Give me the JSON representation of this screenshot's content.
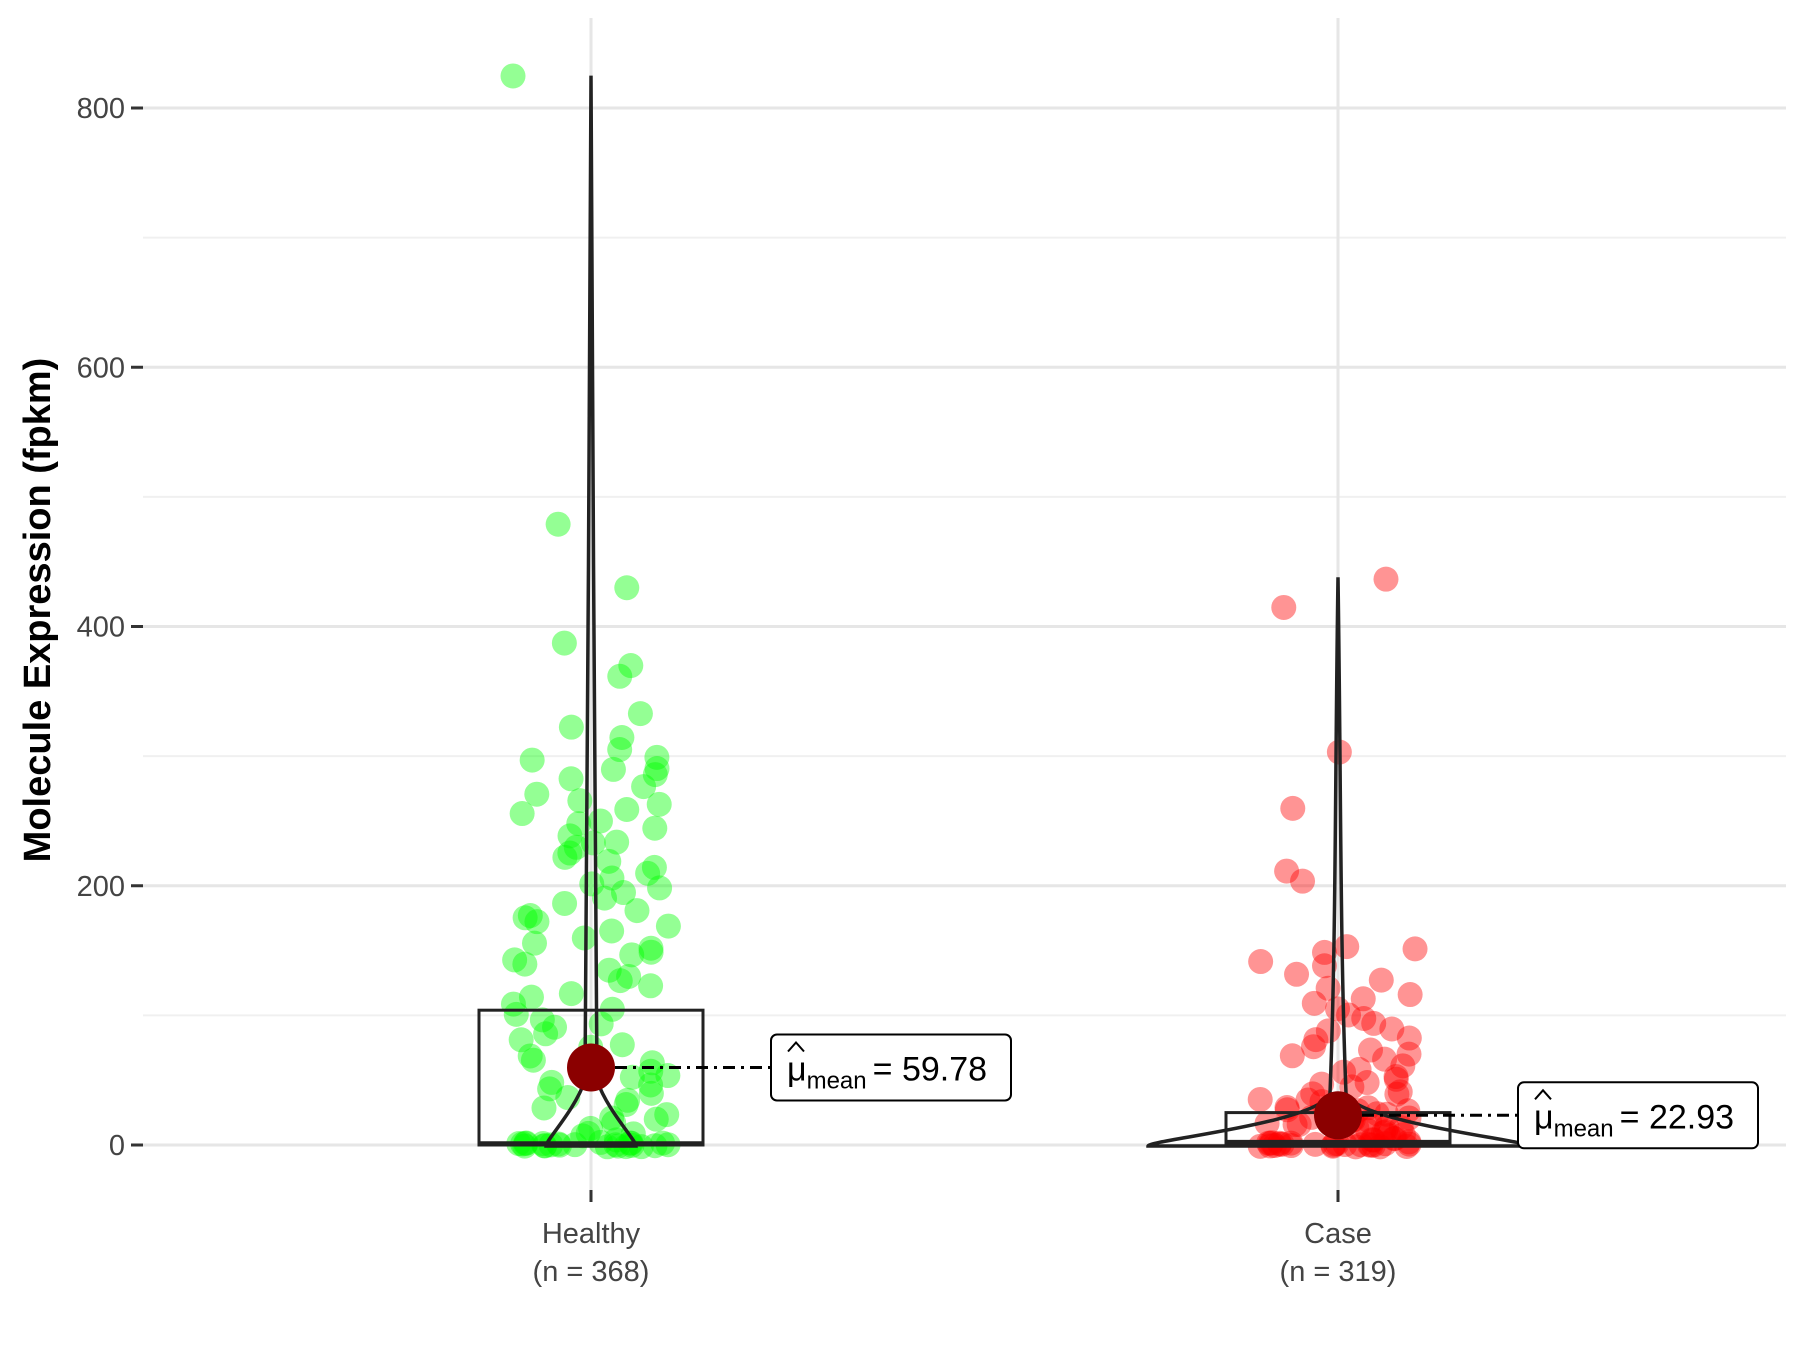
{
  "chart_data": {
    "type": "violin-box-scatter",
    "title": "",
    "ylabel": "Molecule Expression (fpkm)",
    "xlabel": "",
    "ylim": [
      -45,
      870
    ],
    "yticks": [
      0,
      200,
      400,
      600,
      800
    ],
    "grid": true,
    "legend": "none",
    "categories": [
      {
        "name": "Healthy",
        "n_label": "(n = 368)",
        "color": "#00ff00",
        "box": {
          "q1": 0,
          "median": 1,
          "q3": 104
        },
        "mean": 59.78,
        "mean_label_value": "= 59.78",
        "violin_max": 825,
        "points": [
          826,
          478,
          430,
          388,
          370,
          362,
          332,
          323,
          313,
          305,
          300,
          297,
          291,
          290,
          287,
          282,
          276,
          270,
          265,
          263,
          260,
          255,
          250,
          247,
          243,
          238,
          235,
          232,
          229,
          225,
          222,
          218,
          214,
          210,
          206,
          202,
          198,
          194,
          190,
          186,
          182,
          178,
          175,
          171,
          168,
          164,
          160,
          157,
          153,
          150,
          146,
          142,
          138,
          134,
          130,
          126,
          122,
          118,
          114,
          110,
          106,
          102,
          98,
          94,
          90,
          86,
          82,
          78,
          74,
          70,
          66,
          62,
          58,
          55,
          52,
          49,
          46,
          43,
          40,
          37,
          34,
          31,
          28,
          25,
          22,
          19,
          16,
          13,
          10,
          8,
          6,
          4,
          2,
          1,
          0,
          0,
          0,
          0,
          0,
          0,
          0,
          0,
          0,
          0,
          0,
          0,
          0,
          0,
          0,
          0,
          0,
          0,
          0,
          0,
          0,
          0
        ]
      },
      {
        "name": "Case",
        "n_label": "(n = 319)",
        "color": "#ff0000",
        "box": {
          "q1": 0,
          "median": 2,
          "q3": 25
        },
        "mean": 22.93,
        "mean_label_value": "= 22.93",
        "violin_max": 438,
        "points": [
          438,
          416,
          302,
          260,
          210,
          204,
          153,
          150,
          148,
          140,
          137,
          133,
          128,
          122,
          117,
          113,
          109,
          105,
          101,
          98,
          95,
          91,
          88,
          84,
          80,
          77,
          74,
          71,
          68,
          65,
          62,
          59,
          56,
          53,
          50,
          48,
          46,
          44,
          42,
          40,
          38,
          36,
          34,
          32,
          30,
          28,
          27,
          26,
          25,
          24,
          23,
          22,
          21,
          20,
          19,
          18,
          17,
          16,
          15,
          14,
          13,
          12,
          11,
          10,
          9,
          8,
          7,
          6,
          5,
          4,
          3,
          2,
          1,
          1,
          0,
          0,
          0,
          0,
          0,
          0,
          0,
          0,
          0,
          0,
          0,
          0,
          0,
          0,
          0,
          0,
          0,
          0,
          0,
          0,
          0,
          0,
          0,
          0
        ]
      }
    ],
    "mean_label_prefix": "μ",
    "mean_label_sub": "mean",
    "mean_point_color": "#8b0000"
  }
}
